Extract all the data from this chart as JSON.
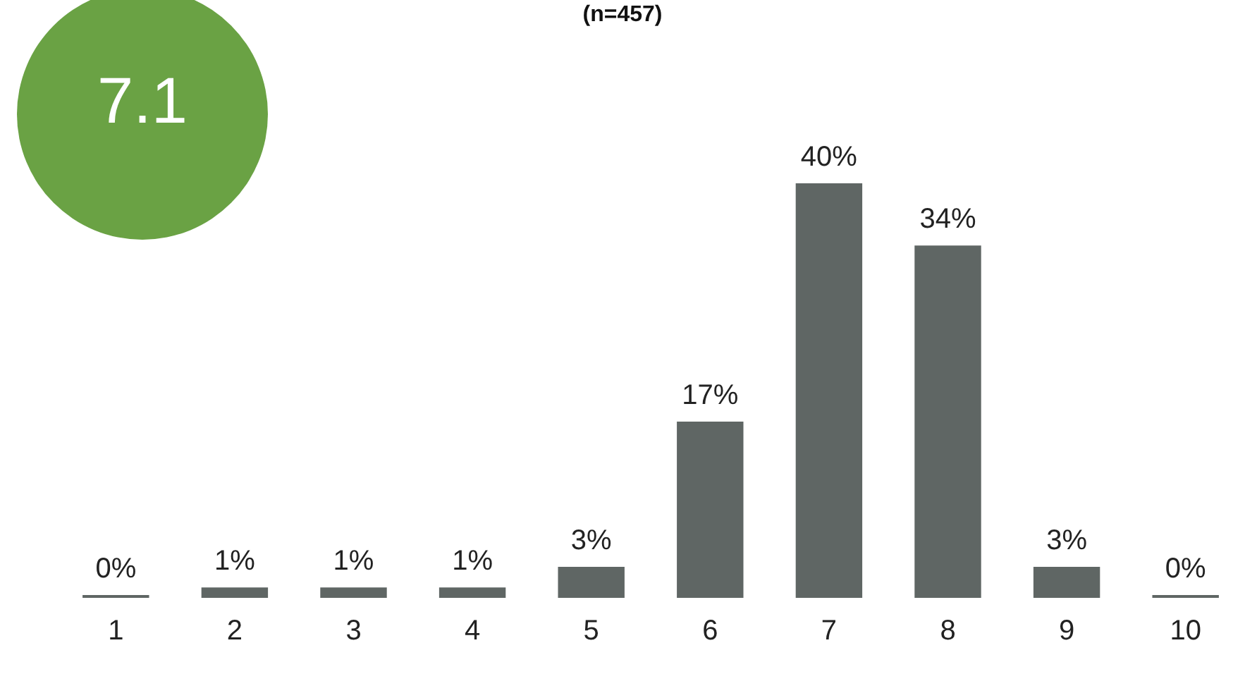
{
  "chart_data": {
    "type": "bar",
    "title": "(n=457)",
    "categories": [
      "1",
      "2",
      "3",
      "4",
      "5",
      "6",
      "7",
      "8",
      "9",
      "10"
    ],
    "values": [
      0,
      1,
      1,
      1,
      3,
      17,
      40,
      34,
      3,
      0
    ],
    "value_labels": [
      "0%",
      "1%",
      "1%",
      "1%",
      "3%",
      "17%",
      "40%",
      "34%",
      "3%",
      "0%"
    ],
    "color": "#5f6664",
    "annotations": [
      "7.1"
    ],
    "grid": false,
    "legend": false,
    "tick_labels": "x"
  }
}
